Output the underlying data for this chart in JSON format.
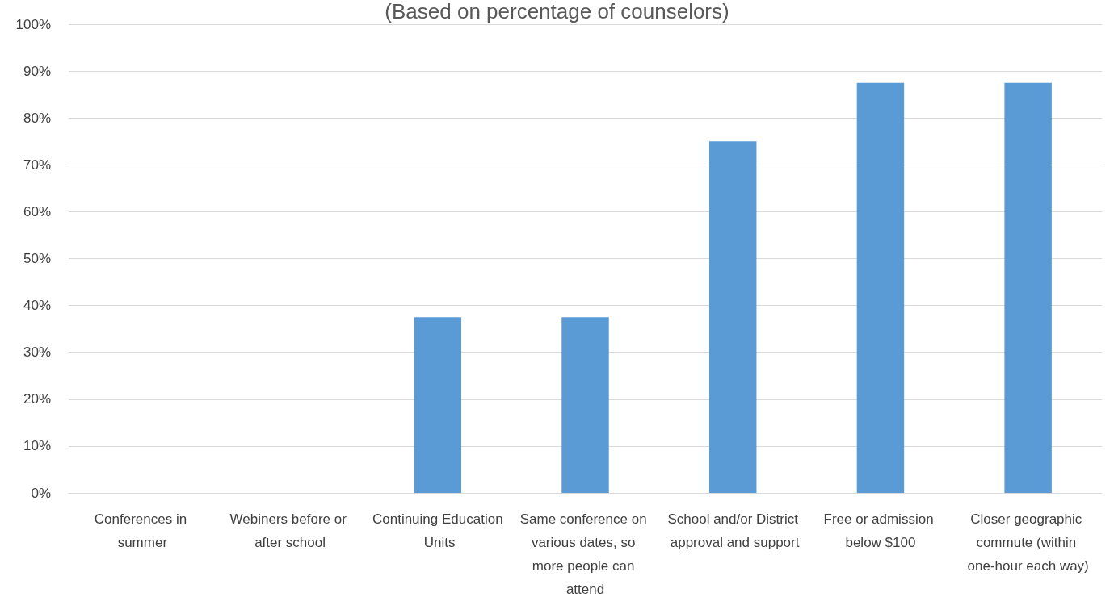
{
  "chart_data": {
    "type": "bar",
    "title": "(Based on percentage of counselors)",
    "categories": [
      "Conferences in summer",
      "Webiners before or after school",
      "Continuing Education Units",
      "Same conference on various dates, so more people can attend",
      "School and/or District approval and support",
      "Free or admission below $100",
      "Closer geographic commute (within one-hour each way)"
    ],
    "values": [
      0,
      0,
      37.5,
      37.5,
      75,
      87.5,
      87.5
    ],
    "color": "#5b9bd5",
    "ylim": [
      0,
      100
    ],
    "yticks": [
      {
        "value": 0,
        "label": "0%"
      },
      {
        "value": 10,
        "label": "10%"
      },
      {
        "value": 20,
        "label": "20%"
      },
      {
        "value": 30,
        "label": "30%"
      },
      {
        "value": 40,
        "label": "40%"
      },
      {
        "value": 50,
        "label": "50%"
      },
      {
        "value": 60,
        "label": "60%"
      },
      {
        "value": 70,
        "label": "70%"
      },
      {
        "value": 80,
        "label": "80%"
      },
      {
        "value": 90,
        "label": "90%"
      },
      {
        "value": 100,
        "label": "100%"
      }
    ],
    "grid": "y"
  }
}
